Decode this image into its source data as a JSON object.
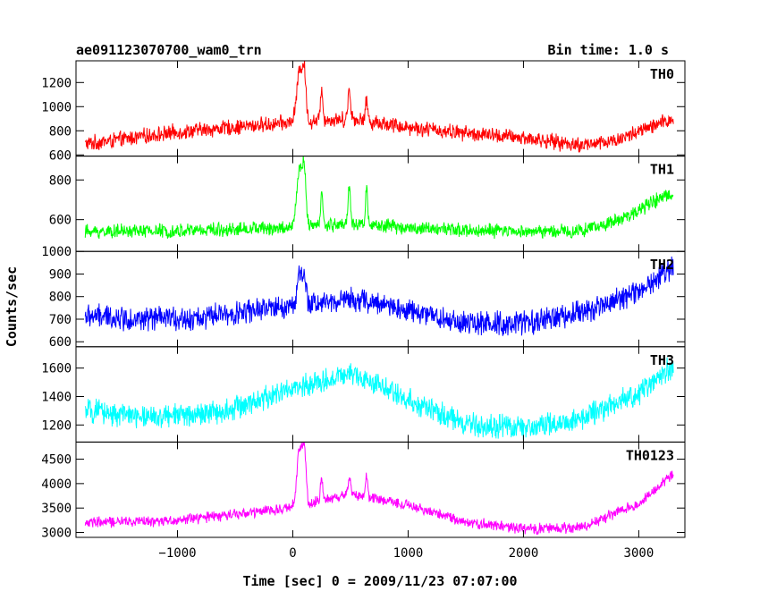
{
  "header": {
    "title": "ae091123070700_wam0_trn",
    "bin_time": "Bin time: 1.0 s"
  },
  "chart_data": {
    "type": "line",
    "title": "ae091123070700_wam0_trn",
    "xlabel": "Time [sec] 0 = 2009/11/23 07:07:00",
    "ylabel": "Counts/sec",
    "xlim": [
      -1880,
      3400
    ],
    "x_ticks": [
      -1000,
      0,
      1000,
      2000,
      3000
    ],
    "x_tick_labels": [
      "−1000",
      "0",
      "1000",
      "2000",
      "3000"
    ],
    "x_range": [
      -1800,
      3300
    ],
    "grid": false,
    "panels": [
      {
        "name": "TH0",
        "color": "#ff0000",
        "ylim": [
          590,
          1380
        ],
        "y_ticks": [
          600,
          800,
          1000,
          1200
        ],
        "noise": 55,
        "baseline": [
          [
            -1800,
            690
          ],
          [
            -1000,
            790
          ],
          [
            0,
            870
          ],
          [
            500,
            900
          ],
          [
            1000,
            830
          ],
          [
            1500,
            780
          ],
          [
            2000,
            740
          ],
          [
            2500,
            680
          ],
          [
            2800,
            720
          ],
          [
            3300,
            900
          ]
        ],
        "spikes": [
          [
            60,
            1300,
            25
          ],
          [
            100,
            1220,
            15
          ],
          [
            250,
            1170,
            10
          ],
          [
            490,
            1130,
            12
          ],
          [
            640,
            1050,
            10
          ]
        ]
      },
      {
        "name": "TH1",
        "color": "#00ff00",
        "ylim": [
          440,
          920
        ],
        "y_ticks": [
          600,
          800
        ],
        "noise": 30,
        "baseline": [
          [
            -1800,
            540
          ],
          [
            -1000,
            545
          ],
          [
            0,
            560
          ],
          [
            500,
            580
          ],
          [
            1000,
            560
          ],
          [
            1500,
            545
          ],
          [
            2000,
            540
          ],
          [
            2500,
            545
          ],
          [
            2800,
            590
          ],
          [
            3300,
            740
          ]
        ],
        "spikes": [
          [
            60,
            850,
            25
          ],
          [
            100,
            800,
            15
          ],
          [
            250,
            730,
            10
          ],
          [
            490,
            780,
            10
          ],
          [
            640,
            790,
            8
          ]
        ]
      },
      {
        "name": "TH2",
        "color": "#0000ff",
        "ylim": [
          578,
          1000
        ],
        "y_ticks": [
          600,
          700,
          800,
          900,
          1000
        ],
        "noise": 45,
        "baseline": [
          [
            -1800,
            715
          ],
          [
            -1300,
            700
          ],
          [
            -800,
            705
          ],
          [
            0,
            760
          ],
          [
            500,
            790
          ],
          [
            1000,
            740
          ],
          [
            1500,
            680
          ],
          [
            2000,
            680
          ],
          [
            2500,
            730
          ],
          [
            3000,
            820
          ],
          [
            3300,
            940
          ]
        ],
        "spikes": [
          [
            60,
            900,
            20
          ],
          [
            100,
            860,
            15
          ]
        ]
      },
      {
        "name": "TH3",
        "color": "#00ffff",
        "ylim": [
          1080,
          1750
        ],
        "y_ticks": [
          1200,
          1400,
          1600
        ],
        "noise": 70,
        "baseline": [
          [
            -1800,
            1300
          ],
          [
            -1200,
            1250
          ],
          [
            -600,
            1300
          ],
          [
            0,
            1450
          ],
          [
            500,
            1560
          ],
          [
            1000,
            1380
          ],
          [
            1500,
            1200
          ],
          [
            2000,
            1180
          ],
          [
            2500,
            1240
          ],
          [
            3000,
            1420
          ],
          [
            3300,
            1620
          ]
        ],
        "spikes": []
      },
      {
        "name": "TH0123",
        "color": "#ff00ff",
        "ylim": [
          2900,
          4850
        ],
        "y_ticks": [
          3000,
          3500,
          4000,
          4500
        ],
        "noise": 95,
        "baseline": [
          [
            -1800,
            3200
          ],
          [
            -1000,
            3250
          ],
          [
            0,
            3500
          ],
          [
            500,
            3800
          ],
          [
            1000,
            3550
          ],
          [
            1500,
            3220
          ],
          [
            2000,
            3080
          ],
          [
            2500,
            3100
          ],
          [
            3000,
            3600
          ],
          [
            3300,
            4200
          ]
        ],
        "spikes": [
          [
            60,
            4700,
            25
          ],
          [
            100,
            4500,
            15
          ],
          [
            250,
            4100,
            10
          ],
          [
            490,
            4100,
            10
          ],
          [
            640,
            4150,
            10
          ]
        ]
      }
    ]
  }
}
